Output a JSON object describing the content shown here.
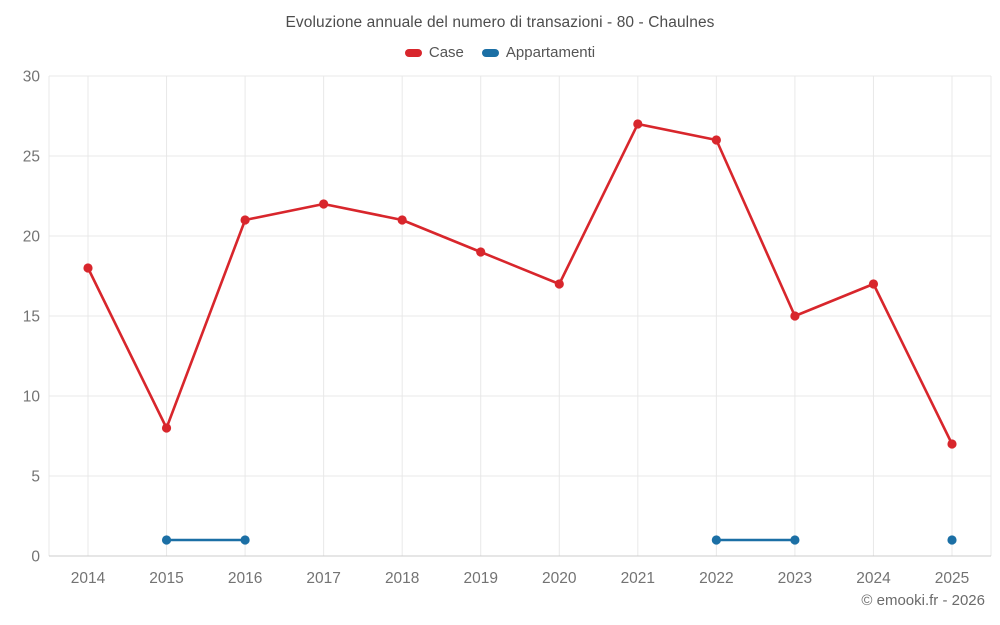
{
  "title": "Evoluzione annuale del numero di transazioni - 80 - Chaulnes",
  "copyright": "© emooki.fr - 2026",
  "colors": {
    "case_red": "#d8262c",
    "appartamenti_blue": "#1b6fa5",
    "grid": "#e8e8e8",
    "axis_line": "#cccccc",
    "tick_label": "#737373",
    "title_text": "#4d4d4d",
    "legend_text": "#555555"
  },
  "chart_data": {
    "type": "line",
    "title": "Evoluzione annuale del numero di transazioni - 80 - Chaulnes",
    "x": [
      2014,
      2015,
      2016,
      2017,
      2018,
      2019,
      2020,
      2021,
      2022,
      2023,
      2024,
      2025
    ],
    "series": [
      {
        "name": "Case",
        "color": "#d8262c",
        "values": [
          18,
          8,
          21,
          22,
          21,
          19,
          17,
          27,
          26,
          15,
          17,
          7
        ]
      },
      {
        "name": "Appartamenti",
        "color": "#1b6fa5",
        "values": [
          null,
          1,
          1,
          null,
          null,
          null,
          null,
          null,
          1,
          1,
          null,
          1
        ]
      }
    ],
    "xlabel": "",
    "ylabel": "",
    "ylim": [
      0,
      30
    ],
    "yticks": [
      0,
      5,
      10,
      15,
      20,
      25,
      30
    ],
    "grid": true,
    "legend_position": "top",
    "markers": true
  }
}
